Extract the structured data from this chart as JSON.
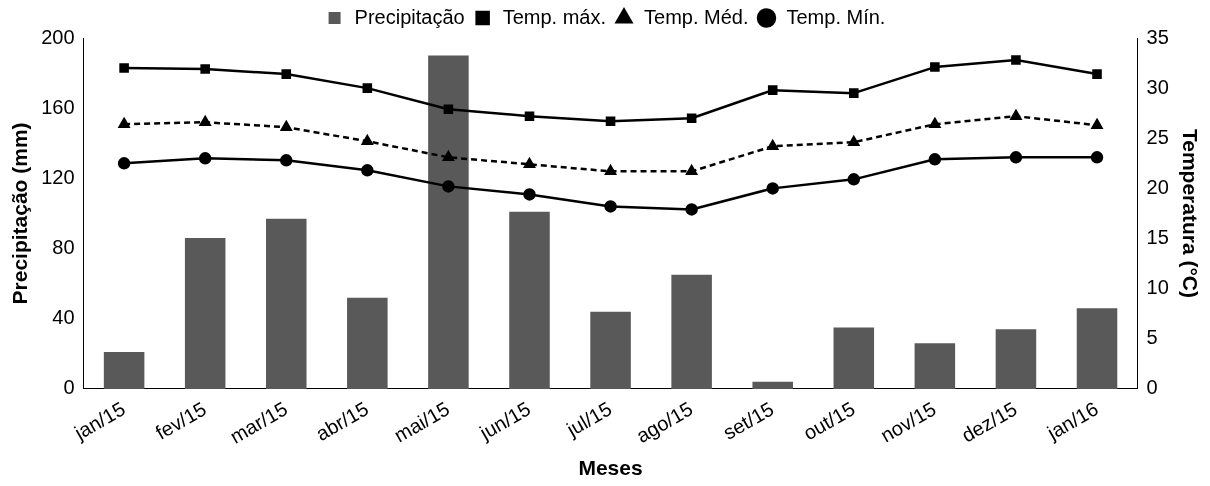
{
  "chart_data": {
    "type": "bar",
    "xlabel": "Meses",
    "ylabel": "Precipitação (mm)",
    "y2label": "Temperatura (°C)",
    "categories": [
      "jan/15",
      "fev/15",
      "mar/15",
      "abr/15",
      "mai/15",
      "jun/15",
      "jul/15",
      "ago/15",
      "set/15",
      "out/15",
      "nov/15",
      "dez/15",
      "jan/16"
    ],
    "series": [
      {
        "name": "Precipitação",
        "color": "#595959",
        "values": [
          21,
          86,
          97,
          52,
          190,
          101,
          44,
          65,
          4,
          35,
          26,
          34,
          46
        ]
      },
      {
        "name": "Temp. máx.",
        "type": "line",
        "axis": "y2",
        "color": "#000000",
        "marker": "square",
        "line_style": "solid",
        "values": [
          32.0,
          31.9,
          31.4,
          30.0,
          27.9,
          27.2,
          26.7,
          27.0,
          29.8,
          29.5,
          32.1,
          32.8,
          31.4
        ]
      },
      {
        "name": "Temp. Méd.",
        "type": "line",
        "axis": "y2",
        "color": "#000000",
        "marker": "triangle",
        "line_style": "dashed",
        "values": [
          26.4,
          26.6,
          26.1,
          24.7,
          23.1,
          22.4,
          21.7,
          21.7,
          24.2,
          24.6,
          26.4,
          27.2,
          26.3
        ]
      },
      {
        "name": "Temp. Mín.",
        "type": "line",
        "axis": "y2",
        "color": "#000000",
        "marker": "circle",
        "line_style": "solid",
        "values": [
          22.5,
          23.0,
          22.8,
          21.8,
          20.2,
          19.4,
          18.2,
          17.9,
          20.0,
          20.9,
          22.9,
          23.1,
          23.1
        ]
      }
    ],
    "ylim": [
      0,
      200
    ],
    "yticks": [
      0,
      40,
      80,
      120,
      160,
      200
    ],
    "y2lim": [
      0,
      35
    ],
    "y2ticks": [
      0,
      5,
      10,
      15,
      20,
      25,
      30,
      35
    ],
    "grid": false,
    "legend": "top"
  }
}
